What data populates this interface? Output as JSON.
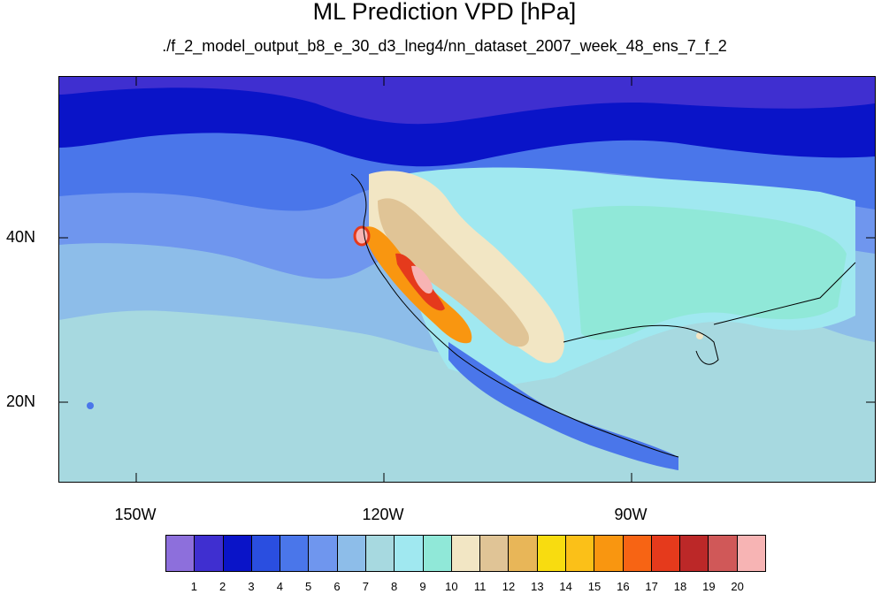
{
  "title": "ML Prediction VPD [hPa]",
  "subtitle": "./f_2_model_output_b8_e_30_d3_lneg4/nn_dataset_2007_week_48_ens_7_f_2",
  "axes": {
    "lat_labels": [
      "40N",
      "20N"
    ],
    "lon_labels": [
      "150W",
      "120W",
      "90W"
    ]
  },
  "colorbar": {
    "labels": [
      "1",
      "2",
      "3",
      "4",
      "5",
      "6",
      "7",
      "8",
      "9",
      "10",
      "11",
      "12",
      "13",
      "14",
      "15",
      "16",
      "17",
      "18",
      "19",
      "20"
    ],
    "colors": [
      "#8d6fdc",
      "#3f2fd0",
      "#0a14c8",
      "#2a4ee0",
      "#4a76ea",
      "#6f96ee",
      "#8dbde9",
      "#a7d9e0",
      "#a0e8f0",
      "#90e8d8",
      "#f2e6c4",
      "#e0c496",
      "#e8b658",
      "#f8dc10",
      "#fbc018",
      "#f99610",
      "#f76414",
      "#e53a1c",
      "#bc2828",
      "#d05858",
      "#f7b4b4"
    ]
  },
  "map": {
    "regions": {
      "ocean_south": "#a7d9e0",
      "ocean_mid": "#8dbde9",
      "ocean_north": "#4a76ea",
      "high_lat": "#2a4ee0",
      "arctic": "#0a14c8",
      "plains": "#90e8d8",
      "southwest_high": "#f2e6c4",
      "hot_core": "#f99610",
      "hottest": "#f7b4b4"
    }
  }
}
